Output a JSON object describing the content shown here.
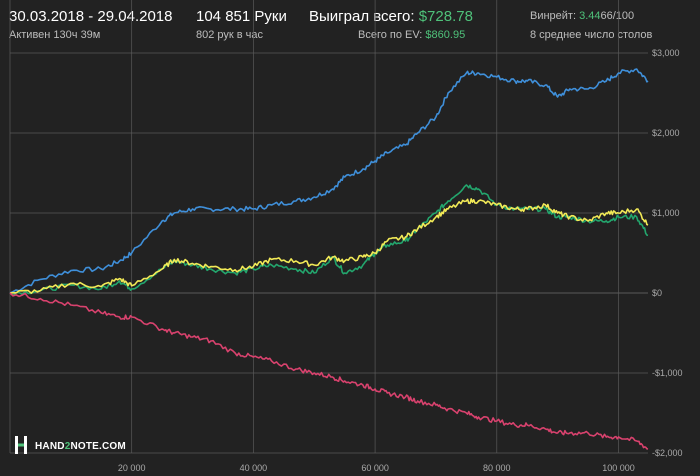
{
  "header": {
    "date_range": "30.03.2018 - 29.04.2018",
    "active": "Активен 130ч 39м",
    "hands": "104 851 Руки",
    "hands_rate": "802 рук в час",
    "won_label": "Выиграл всего:",
    "won_value": "$728.78",
    "ev_label": "Всего по EV:",
    "ev_value": "$860.95",
    "winrate_label": "Винрейт:",
    "winrate_value": "3.44",
    "winrate_unit": "66/100",
    "tables": "8 среднее число столов"
  },
  "logo": {
    "prefix": "HAND",
    "mid": "2",
    "suffix": "NOTE.COM"
  },
  "colors": {
    "background": "#222222",
    "grid": "#5a5a5a",
    "blue": "#3f8fd9",
    "green": "#23a66d",
    "yellow": "#f2ea57",
    "red": "#d9426e",
    "accent_green": "#4fc17a"
  },
  "chart_data": {
    "type": "line",
    "xlim": [
      0,
      104851
    ],
    "ylim": [
      -2000,
      3000
    ],
    "x_ticks": [
      20000,
      40000,
      60000,
      80000,
      100000
    ],
    "x_tick_labels": [
      "20 000",
      "40 000",
      "60 000",
      "80 000",
      "100 000"
    ],
    "y_ticks": [
      3000,
      2000,
      1000,
      0,
      -1000,
      -2000
    ],
    "y_tick_labels": [
      "$3,000",
      "$2,000",
      "$1,000",
      "$0",
      "-$1,000",
      "-$2,000"
    ],
    "grid": true,
    "x": [
      0,
      5000,
      10000,
      15000,
      18000,
      20000,
      25000,
      27000,
      30000,
      33000,
      37000,
      40000,
      43000,
      47000,
      50000,
      53000,
      55000,
      58000,
      60000,
      62000,
      65000,
      67000,
      70000,
      72000,
      75000,
      77000,
      80000,
      83000,
      85000,
      88000,
      90000,
      92000,
      95000,
      98000,
      100000,
      103000,
      104851
    ],
    "series": [
      {
        "color": "blue",
        "values": [
          0,
          170,
          280,
          300,
          400,
          500,
          900,
          1000,
          1050,
          1050,
          1050,
          1050,
          1100,
          1150,
          1200,
          1300,
          1450,
          1550,
          1650,
          1750,
          1850,
          2000,
          2200,
          2500,
          2750,
          2750,
          2700,
          2650,
          2650,
          2600,
          2450,
          2550,
          2550,
          2650,
          2750,
          2800,
          2650
        ]
      },
      {
        "color": "green",
        "values": [
          0,
          30,
          100,
          50,
          150,
          50,
          300,
          400,
          350,
          300,
          250,
          300,
          350,
          300,
          250,
          450,
          250,
          350,
          500,
          600,
          650,
          800,
          1000,
          1150,
          1350,
          1300,
          1100,
          1050,
          1050,
          1050,
          950,
          950,
          900,
          900,
          950,
          950,
          720
        ]
      },
      {
        "color": "yellow",
        "values": [
          0,
          30,
          120,
          80,
          180,
          90,
          300,
          420,
          370,
          330,
          290,
          330,
          420,
          400,
          350,
          450,
          400,
          450,
          500,
          650,
          700,
          800,
          950,
          1050,
          1150,
          1150,
          1100,
          1050,
          1050,
          1100,
          1000,
          950,
          900,
          1000,
          1000,
          1050,
          850
        ]
      },
      {
        "color": "red",
        "values": [
          0,
          -70,
          -150,
          -250,
          -300,
          -300,
          -450,
          -500,
          -550,
          -600,
          -750,
          -800,
          -850,
          -950,
          -1000,
          -1050,
          -1100,
          -1150,
          -1200,
          -1250,
          -1300,
          -1350,
          -1400,
          -1450,
          -1500,
          -1550,
          -1600,
          -1650,
          -1650,
          -1700,
          -1750,
          -1750,
          -1750,
          -1800,
          -1800,
          -1850,
          -1950
        ]
      }
    ]
  }
}
